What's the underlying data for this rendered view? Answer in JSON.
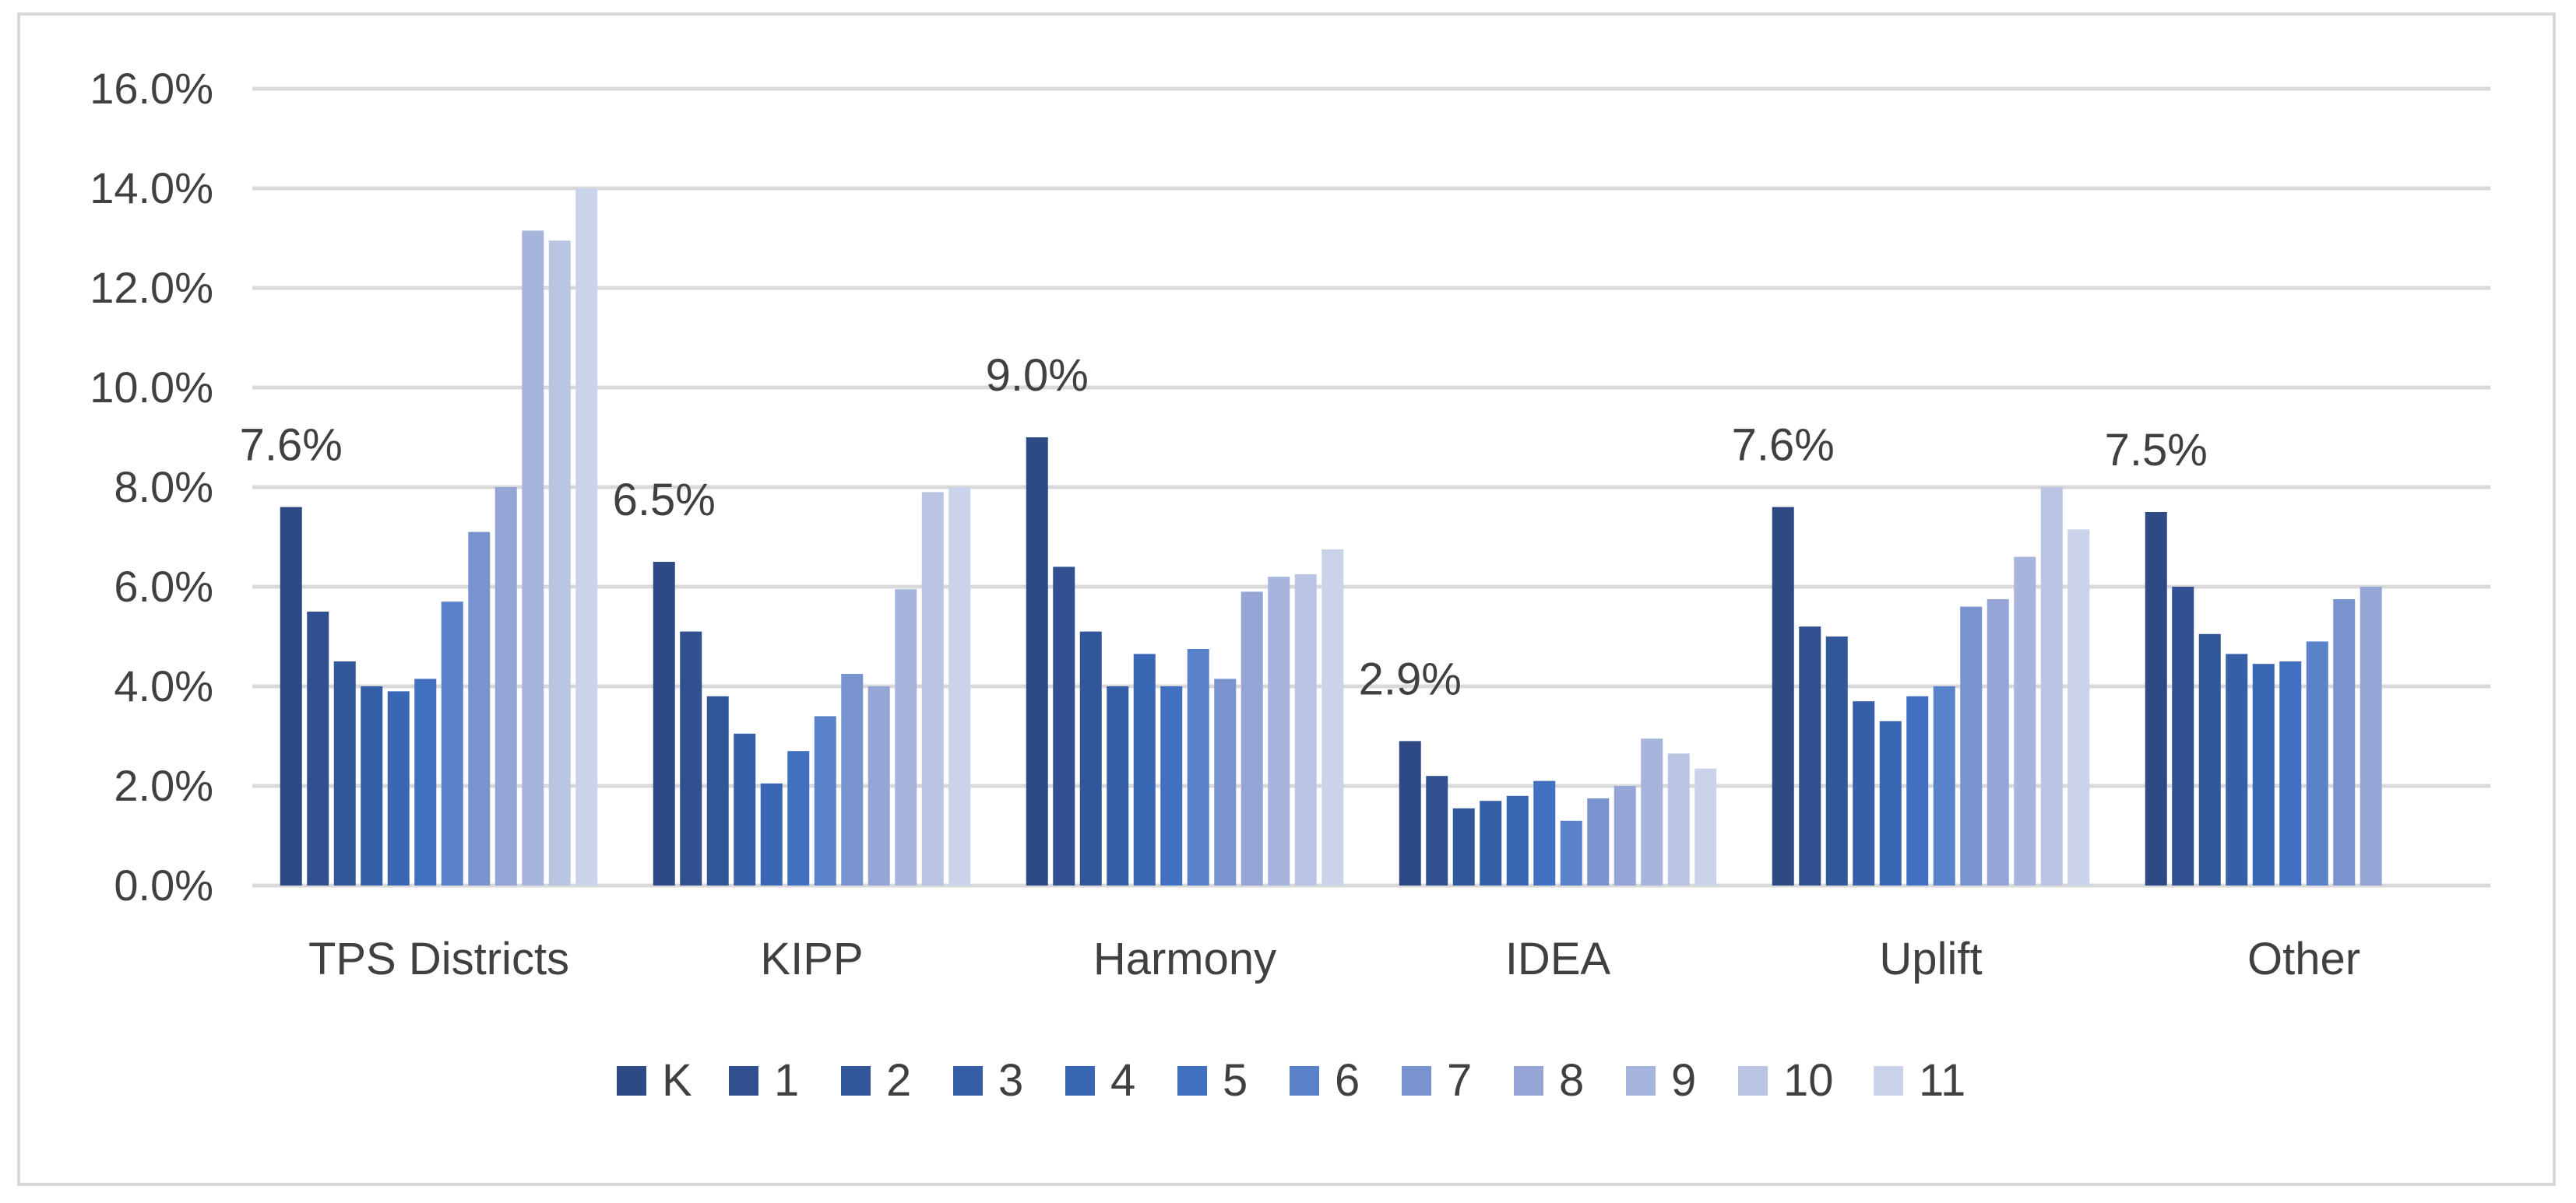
{
  "chart_data": {
    "type": "bar",
    "title": "",
    "xlabel": "",
    "ylabel": "",
    "ylim": [
      0,
      16
    ],
    "y_ticks": [
      "0.0%",
      "2.0%",
      "4.0%",
      "6.0%",
      "8.0%",
      "10.0%",
      "12.0%",
      "14.0%",
      "16.0%"
    ],
    "grid": true,
    "legend_position": "bottom",
    "categories": [
      "TPS Districts",
      "KIPP",
      "Harmony",
      "IDEA",
      "Uplift",
      "Other"
    ],
    "series": [
      {
        "name": "K",
        "color": "#2e4a85",
        "values": [
          7.6,
          6.5,
          9.0,
          2.9,
          7.6,
          7.5
        ]
      },
      {
        "name": "1",
        "color": "#30508f",
        "values": [
          5.5,
          5.1,
          6.4,
          2.2,
          5.2,
          6.0
        ]
      },
      {
        "name": "2",
        "color": "#325799",
        "values": [
          4.5,
          3.8,
          5.1,
          1.55,
          5.0,
          5.05
        ]
      },
      {
        "name": "3",
        "color": "#355fa6",
        "values": [
          4.0,
          3.05,
          4.0,
          1.7,
          3.7,
          4.65
        ]
      },
      {
        "name": "4",
        "color": "#3a67b3",
        "values": [
          3.9,
          2.05,
          4.65,
          1.8,
          3.3,
          4.45
        ]
      },
      {
        "name": "5",
        "color": "#4270c0",
        "values": [
          4.15,
          2.7,
          4.0,
          2.1,
          3.8,
          4.5
        ]
      },
      {
        "name": "6",
        "color": "#5a82c9",
        "values": [
          5.7,
          3.4,
          4.75,
          1.3,
          4.0,
          4.9
        ]
      },
      {
        "name": "7",
        "color": "#7993cf",
        "values": [
          7.1,
          4.25,
          4.15,
          1.75,
          5.6,
          5.75
        ]
      },
      {
        "name": "8",
        "color": "#95a6d6",
        "values": [
          8.0,
          4.0,
          5.9,
          2.0,
          5.75,
          6.0
        ]
      },
      {
        "name": "9",
        "color": "#a7b4dc",
        "values": [
          13.15,
          5.95,
          6.2,
          2.95,
          6.6,
          null
        ]
      },
      {
        "name": "10",
        "color": "#bac5e3",
        "values": [
          12.95,
          7.9,
          6.25,
          2.65,
          8.0,
          null
        ]
      },
      {
        "name": "11",
        "color": "#cbd3ea",
        "values": [
          14.0,
          8.0,
          6.75,
          2.35,
          7.15,
          null
        ]
      }
    ],
    "data_labels": [
      "7.6%",
      "6.5%",
      "9.0%",
      "2.9%",
      "7.6%",
      "7.5%"
    ]
  }
}
